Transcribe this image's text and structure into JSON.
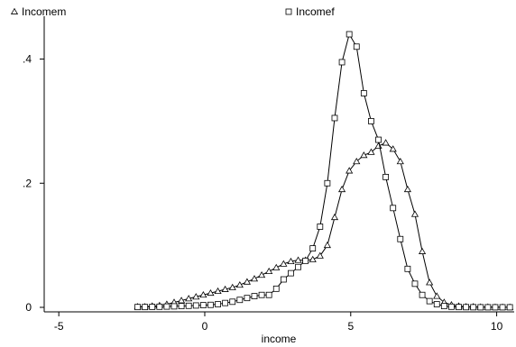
{
  "chart_data": {
    "type": "line",
    "title": "",
    "xlabel": "income",
    "ylabel": "",
    "xlim": [
      -5.5,
      10.6
    ],
    "ylim": [
      -0.005,
      0.46
    ],
    "xticks": [
      -5,
      0,
      5,
      10
    ],
    "xtick_labels": [
      "-5",
      "0",
      "5",
      "10"
    ],
    "yticks": [
      0,
      0.2,
      0.4
    ],
    "ytick_labels": [
      "0",
      ".2",
      ".4"
    ],
    "grid": false,
    "legend_position": "top",
    "series": [
      {
        "name": "Incomem",
        "marker": "triangle",
        "color": "#000000",
        "x": [
          -2.3,
          -2.05,
          -1.8,
          -1.55,
          -1.3,
          -1.05,
          -0.8,
          -0.55,
          -0.3,
          -0.05,
          0.2,
          0.45,
          0.7,
          0.95,
          1.2,
          1.45,
          1.7,
          1.95,
          2.2,
          2.45,
          2.7,
          2.95,
          3.2,
          3.45,
          3.7,
          3.95,
          4.2,
          4.45,
          4.7,
          4.95,
          5.2,
          5.45,
          5.7,
          5.95,
          6.2,
          6.45,
          6.7,
          6.95,
          7.2,
          7.45,
          7.7,
          7.95,
          8.2,
          8.45,
          8.7,
          8.95,
          9.2,
          9.45,
          9.7,
          9.95,
          10.2,
          10.45
        ],
        "y": [
          0.001,
          0.001,
          0.002,
          0.003,
          0.005,
          0.008,
          0.011,
          0.014,
          0.017,
          0.02,
          0.023,
          0.026,
          0.029,
          0.032,
          0.036,
          0.041,
          0.046,
          0.052,
          0.058,
          0.064,
          0.07,
          0.074,
          0.076,
          0.076,
          0.077,
          0.083,
          0.1,
          0.145,
          0.19,
          0.22,
          0.235,
          0.245,
          0.25,
          0.26,
          0.265,
          0.255,
          0.235,
          0.19,
          0.15,
          0.09,
          0.04,
          0.018,
          0.008,
          0.004,
          0.002,
          0.001,
          0.001,
          0.0005,
          0.0005,
          0.0003,
          0.0003,
          0.0002
        ]
      },
      {
        "name": "Incomef",
        "marker": "square",
        "color": "#000000",
        "x": [
          -2.3,
          -2.05,
          -1.8,
          -1.55,
          -1.3,
          -1.05,
          -0.8,
          -0.55,
          -0.3,
          -0.05,
          0.2,
          0.45,
          0.7,
          0.95,
          1.2,
          1.45,
          1.7,
          1.95,
          2.2,
          2.45,
          2.7,
          2.95,
          3.2,
          3.45,
          3.7,
          3.95,
          4.2,
          4.45,
          4.7,
          4.95,
          5.2,
          5.45,
          5.7,
          5.95,
          6.2,
          6.45,
          6.7,
          6.95,
          7.2,
          7.45,
          7.7,
          7.95,
          8.2,
          8.45,
          8.7,
          8.95,
          9.2,
          9.45,
          9.7,
          9.95,
          10.2,
          10.45
        ],
        "y": [
          0.0005,
          0.0005,
          0.0008,
          0.001,
          0.0013,
          0.0016,
          0.002,
          0.0025,
          0.003,
          0.0035,
          0.004,
          0.005,
          0.007,
          0.009,
          0.012,
          0.015,
          0.018,
          0.02,
          0.02,
          0.03,
          0.045,
          0.055,
          0.065,
          0.075,
          0.095,
          0.13,
          0.2,
          0.305,
          0.395,
          0.44,
          0.42,
          0.345,
          0.3,
          0.27,
          0.21,
          0.16,
          0.11,
          0.062,
          0.038,
          0.02,
          0.01,
          0.005,
          0.002,
          0.001,
          0.0005,
          0.0003,
          0.0002,
          0.0001,
          0.0001,
          0.0001,
          0.0001,
          0.0001
        ]
      }
    ]
  }
}
